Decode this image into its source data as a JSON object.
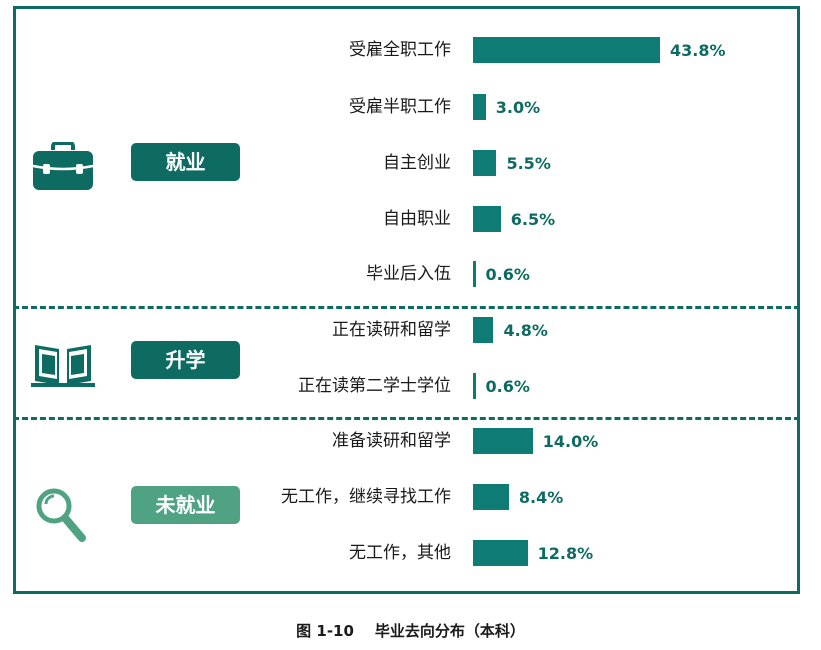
{
  "chart_data": {
    "type": "bar",
    "orientation": "horizontal",
    "groups": [
      {
        "name": "就业",
        "color": "#0e6b62",
        "icon": "briefcase-icon",
        "categories": [
          "受雇全职工作",
          "受雇半职工作",
          "自主创业",
          "自由职业",
          "毕业后入伍"
        ]
      },
      {
        "name": "升学",
        "color": "#0e6b62",
        "icon": "book-icon",
        "categories": [
          "正在读研和留学",
          "正在读第二学士学位"
        ]
      },
      {
        "name": "未就业",
        "color": "#4fa383",
        "icon": "magnifier-icon",
        "categories": [
          "准备读研和留学",
          "无工作，继续寻找工作",
          "无工作，其他"
        ]
      }
    ],
    "categories": [
      "受雇全职工作",
      "受雇半职工作",
      "自主创业",
      "自由职业",
      "毕业后入伍",
      "正在读研和留学",
      "正在读第二学士学位",
      "准备读研和留学",
      "无工作，继续寻找工作",
      "无工作，其他"
    ],
    "values": [
      43.8,
      3.0,
      5.5,
      6.5,
      0.6,
      4.8,
      0.6,
      14.0,
      8.4,
      12.8
    ],
    "value_labels": [
      "43.8%",
      "3.0%",
      "5.5%",
      "6.5%",
      "0.6%",
      "4.8%",
      "0.6%",
      "14.0%",
      "8.4%",
      "12.8%"
    ],
    "unit": "%",
    "bar_color": "#0e7c74",
    "xlim": [
      0,
      50
    ]
  },
  "caption": "图 1-10    毕业去向分布（本科）"
}
